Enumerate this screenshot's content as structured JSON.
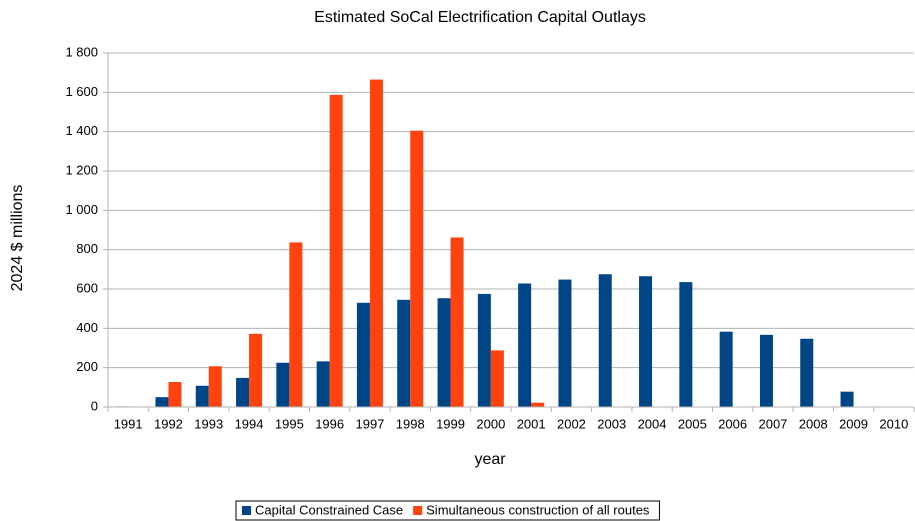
{
  "chart_data": {
    "type": "bar",
    "title": "Estimated SoCal Electrification Capital Outlays",
    "x_label": "year",
    "y_label": "2024 $ millions",
    "categories": [
      "1991",
      "1992",
      "1993",
      "1994",
      "1995",
      "1996",
      "1997",
      "1998",
      "1999",
      "2000",
      "2001",
      "2002",
      "2003",
      "2004",
      "2005",
      "2006",
      "2007",
      "2008",
      "2009",
      "2010"
    ],
    "series": [
      {
        "name": "Capital Constrained Case",
        "color": "#004586",
        "values": [
          3,
          50,
          108,
          148,
          225,
          232,
          530,
          545,
          553,
          575,
          628,
          648,
          675,
          665,
          635,
          383,
          367,
          347,
          78,
          0
        ]
      },
      {
        "name": "Simultaneous construction of all routes",
        "color": "#ff420e",
        "values": [
          0,
          127,
          207,
          372,
          837,
          1587,
          1665,
          1405,
          862,
          288,
          22,
          0,
          0,
          0,
          0,
          0,
          0,
          0,
          0,
          0
        ]
      }
    ],
    "ylim": [
      0,
      1800
    ],
    "yticks": [
      0,
      200,
      400,
      600,
      800,
      {
        "value": 1000,
        "label": "1 000"
      },
      {
        "value": 1200,
        "label": "1 200"
      },
      {
        "value": 1400,
        "label": "1 400"
      },
      {
        "value": 1600,
        "label": "1 600"
      },
      {
        "value": 1800,
        "label": "1 800"
      }
    ],
    "grid": true,
    "legend": "bottom"
  }
}
